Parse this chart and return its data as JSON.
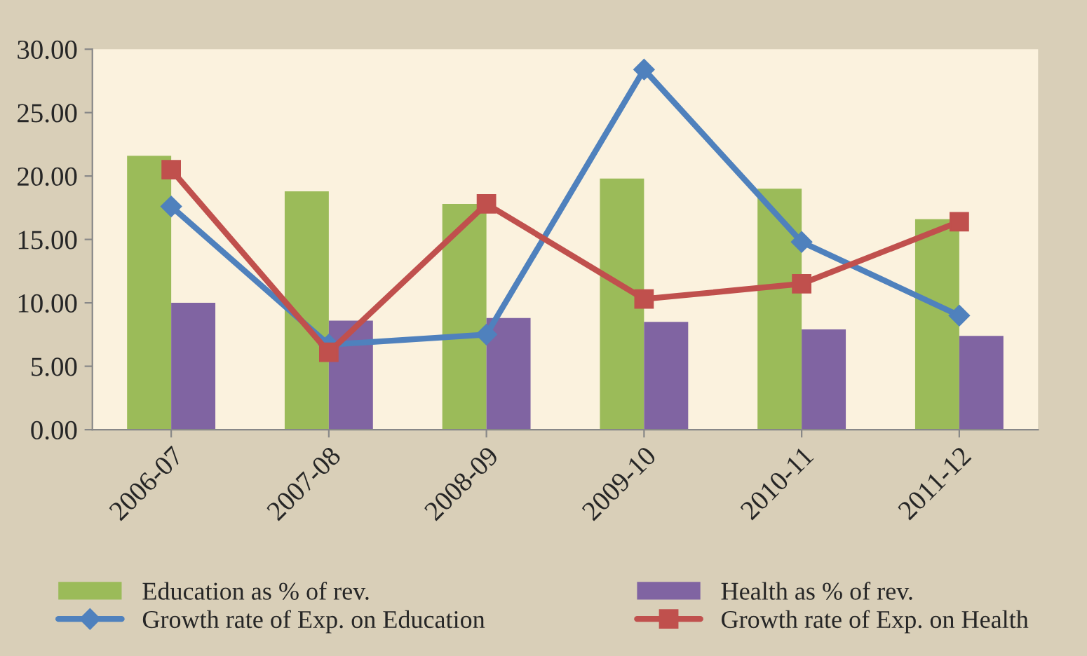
{
  "chart_data": {
    "type": "bar",
    "categories": [
      "2006-07",
      "2007-08",
      "2008-09",
      "2009-10",
      "2010-11",
      "2011-12"
    ],
    "ylim": [
      0,
      30
    ],
    "yticks": [
      {
        "value": 0,
        "label": "0.00"
      },
      {
        "value": 5,
        "label": "5.00"
      },
      {
        "value": 10,
        "label": "10.00"
      },
      {
        "value": 15,
        "label": "15.00"
      },
      {
        "value": 20,
        "label": "20.00"
      },
      {
        "value": 25,
        "label": "25.00"
      },
      {
        "value": 30,
        "label": "30.00"
      }
    ],
    "legend": "bottom",
    "grid": false,
    "series": [
      {
        "name": "Education as % of rev.",
        "color": "#9bbb59",
        "values": [
          21.6,
          18.8,
          17.8,
          19.8,
          19.0,
          16.6
        ]
      },
      {
        "name": "Health as % of rev.",
        "color": "#8064a2",
        "values": [
          10.0,
          8.6,
          8.8,
          8.5,
          7.9,
          7.4
        ]
      },
      {
        "name": "Growth rate of Exp. on Education",
        "type": "line",
        "color": "#4f81bd",
        "marker": "diamond",
        "values": [
          17.6,
          6.7,
          7.5,
          28.4,
          14.8,
          9.0
        ]
      },
      {
        "name": "Growth rate of Exp. on Health",
        "type": "line",
        "color": "#c0504d",
        "marker": "square",
        "values": [
          20.5,
          6.1,
          17.8,
          10.3,
          11.5,
          16.4
        ]
      }
    ]
  }
}
